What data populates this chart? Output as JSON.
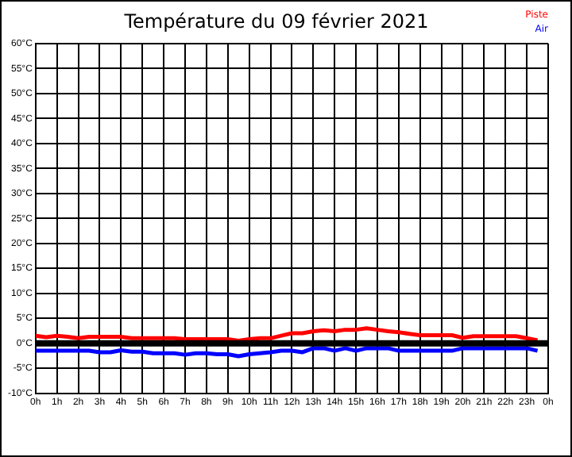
{
  "chart_data": {
    "type": "line",
    "title": "Température du 09 février 2021",
    "x": [
      "2021-02-09T00:00",
      "2021-02-09T00:30",
      "2021-02-09T01:00",
      "2021-02-09T01:30",
      "2021-02-09T02:00",
      "2021-02-09T02:30",
      "2021-02-09T03:00",
      "2021-02-09T03:30",
      "2021-02-09T04:00",
      "2021-02-09T04:30",
      "2021-02-09T05:00",
      "2021-02-09T05:30",
      "2021-02-09T06:00",
      "2021-02-09T06:30",
      "2021-02-09T07:00",
      "2021-02-09T07:30",
      "2021-02-09T08:00",
      "2021-02-09T08:30",
      "2021-02-09T09:00",
      "2021-02-09T09:30",
      "2021-02-09T10:00",
      "2021-02-09T10:30",
      "2021-02-09T11:00",
      "2021-02-09T11:30",
      "2021-02-09T12:00",
      "2021-02-09T12:30",
      "2021-02-09T13:00",
      "2021-02-09T13:30",
      "2021-02-09T14:00",
      "2021-02-09T14:30",
      "2021-02-09T15:00",
      "2021-02-09T15:30",
      "2021-02-09T16:00",
      "2021-02-09T16:30",
      "2021-02-09T17:00",
      "2021-02-09T17:30",
      "2021-02-09T18:00",
      "2021-02-09T18:30",
      "2021-02-09T19:00",
      "2021-02-09T19:30",
      "2021-02-09T20:00",
      "2021-02-09T20:30",
      "2021-02-09T21:00",
      "2021-02-09T21:30",
      "2021-02-09T22:00",
      "2021-02-09T22:30",
      "2021-02-09T23:00",
      "2021-02-09T23:30"
    ],
    "series": [
      {
        "name": "Piste",
        "color": "#ff0000",
        "values": [
          1.5,
          1.2,
          1.5,
          1.3,
          1.0,
          1.3,
          1.3,
          1.3,
          1.3,
          1.0,
          1.0,
          1.0,
          1.0,
          1.0,
          0.8,
          0.8,
          0.8,
          0.8,
          0.8,
          0.5,
          0.8,
          1.0,
          1.0,
          1.5,
          2.0,
          2.0,
          2.4,
          2.6,
          2.4,
          2.7,
          2.7,
          3.0,
          2.7,
          2.4,
          2.2,
          1.9,
          1.6,
          1.6,
          1.6,
          1.6,
          1.1,
          1.4,
          1.4,
          1.4,
          1.4,
          1.4,
          1.0,
          0.6
        ]
      },
      {
        "name": "Air",
        "color": "#0000ff",
        "values": [
          -1.5,
          -1.5,
          -1.5,
          -1.5,
          -1.5,
          -1.5,
          -1.8,
          -1.8,
          -1.4,
          -1.7,
          -1.7,
          -2.0,
          -2.0,
          -2.0,
          -2.3,
          -2.0,
          -2.0,
          -2.2,
          -2.2,
          -2.6,
          -2.2,
          -2.0,
          -1.8,
          -1.5,
          -1.5,
          -1.8,
          -1.0,
          -1.0,
          -1.5,
          -1.0,
          -1.5,
          -1.0,
          -1.0,
          -1.0,
          -1.5,
          -1.5,
          -1.5,
          -1.5,
          -1.5,
          -1.5,
          -1.0,
          -1.0,
          -1.0,
          -1.0,
          -1.0,
          -1.0,
          -1.0,
          -1.5
        ]
      }
    ],
    "xlim": [
      "2021-02-09T00:00",
      "2021-02-10T00:00"
    ],
    "xticks": [
      {
        "value": "2021-02-09T00:00",
        "label": "0h"
      },
      {
        "value": "2021-02-09T01:00",
        "label": "1h"
      },
      {
        "value": "2021-02-09T02:00",
        "label": "2h"
      },
      {
        "value": "2021-02-09T03:00",
        "label": "3h"
      },
      {
        "value": "2021-02-09T04:00",
        "label": "4h"
      },
      {
        "value": "2021-02-09T05:00",
        "label": "5h"
      },
      {
        "value": "2021-02-09T06:00",
        "label": "6h"
      },
      {
        "value": "2021-02-09T07:00",
        "label": "7h"
      },
      {
        "value": "2021-02-09T08:00",
        "label": "8h"
      },
      {
        "value": "2021-02-09T09:00",
        "label": "9h"
      },
      {
        "value": "2021-02-09T10:00",
        "label": "10h"
      },
      {
        "value": "2021-02-09T11:00",
        "label": "11h"
      },
      {
        "value": "2021-02-09T12:00",
        "label": "12h"
      },
      {
        "value": "2021-02-09T13:00",
        "label": "13h"
      },
      {
        "value": "2021-02-09T14:00",
        "label": "14h"
      },
      {
        "value": "2021-02-09T15:00",
        "label": "15h"
      },
      {
        "value": "2021-02-09T16:00",
        "label": "16h"
      },
      {
        "value": "2021-02-09T17:00",
        "label": "17h"
      },
      {
        "value": "2021-02-09T18:00",
        "label": "18h"
      },
      {
        "value": "2021-02-09T19:00",
        "label": "19h"
      },
      {
        "value": "2021-02-09T20:00",
        "label": "20h"
      },
      {
        "value": "2021-02-09T21:00",
        "label": "21h"
      },
      {
        "value": "2021-02-09T22:00",
        "label": "22h"
      },
      {
        "value": "2021-02-09T23:00",
        "label": "23h"
      },
      {
        "value": "2021-02-10T00:00",
        "label": "0h"
      }
    ],
    "ylim": [
      -10,
      60
    ],
    "yticks": [
      {
        "value": -10,
        "label": "-10°C"
      },
      {
        "value": -5,
        "label": "-5°C"
      },
      {
        "value": 0,
        "label": "0°C"
      },
      {
        "value": 5,
        "label": "5°C"
      },
      {
        "value": 10,
        "label": "10°C"
      },
      {
        "value": 15,
        "label": "15°C"
      },
      {
        "value": 20,
        "label": "20°C"
      },
      {
        "value": 25,
        "label": "25°C"
      },
      {
        "value": 30,
        "label": "30°C"
      },
      {
        "value": 35,
        "label": "35°C"
      },
      {
        "value": 40,
        "label": "40°C"
      },
      {
        "value": 45,
        "label": "45°C"
      },
      {
        "value": 50,
        "label": "50°C"
      },
      {
        "value": 55,
        "label": "55°C"
      },
      {
        "value": 60,
        "label": "60°C"
      }
    ],
    "ref_lines": [
      {
        "axis": "y",
        "value": 0,
        "color": "#000000"
      }
    ],
    "grid": true,
    "legend": "top right",
    "marker": "none",
    "line_style": "solid"
  }
}
